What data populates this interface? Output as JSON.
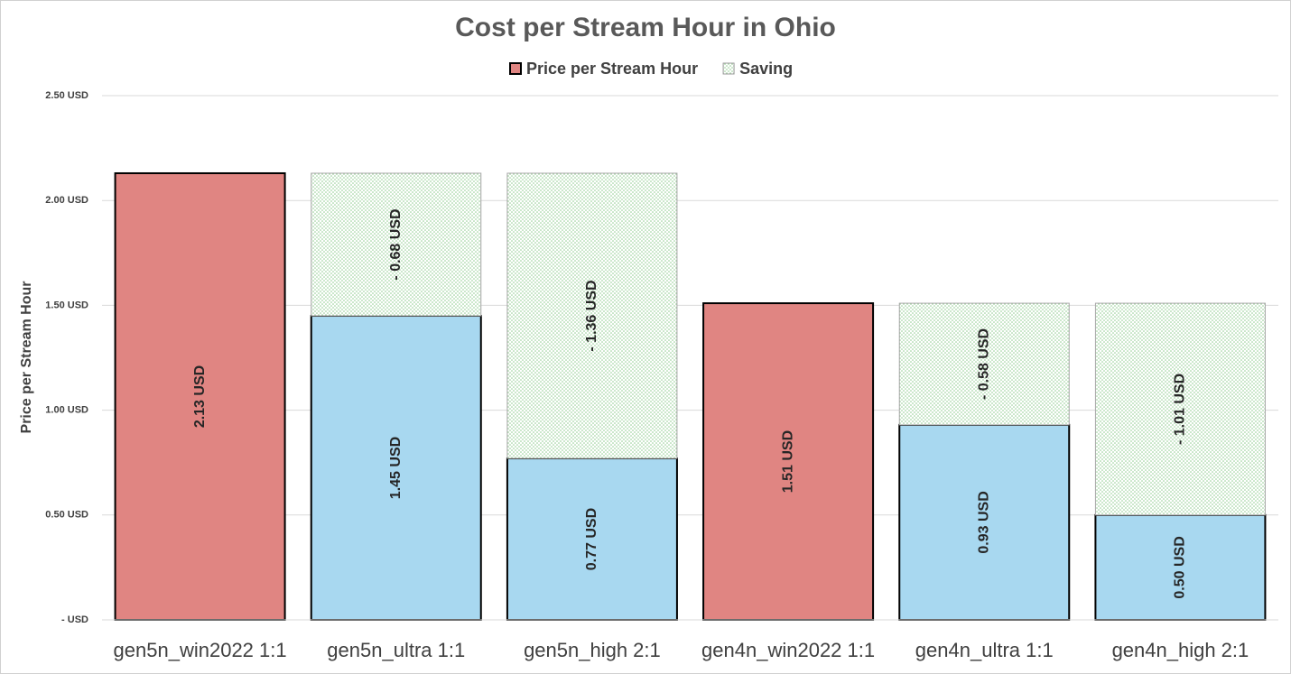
{
  "chart_data": {
    "type": "stacked_bar",
    "title": "Cost per Stream Hour in Ohio",
    "y_label": "Price per Stream Hour",
    "categories": [
      "gen5n_win2022 1:1",
      "gen5n_ultra 1:1",
      "gen5n_high 2:1",
      "gen4n_win2022 1:1",
      "gen4n_ultra 1:1",
      "gen4n_high 2:1"
    ],
    "series": [
      {
        "name": "Price per Stream Hour",
        "color": "#e08582",
        "colors": [
          "#e08582",
          "#a8d8f0",
          "#a8d8f0",
          "#e08582",
          "#a8d8f0",
          "#a8d8f0"
        ],
        "values": [
          2.13,
          1.45,
          0.77,
          1.51,
          0.93,
          0.5
        ],
        "value_labels": [
          "2.13 USD",
          "1.45 USD",
          "0.77 USD",
          "1.51 USD",
          "0.93 USD",
          "0.50 USD"
        ]
      },
      {
        "name": "Saving",
        "color": "#8fcc8f",
        "pattern": "dots",
        "values": [
          null,
          0.68,
          1.36,
          null,
          0.58,
          1.01
        ],
        "value_labels": [
          null,
          "- 0.68 USD",
          "- 1.36 USD",
          null,
          "- 0.58 USD",
          "- 1.01 USD"
        ]
      }
    ],
    "ylim": [
      0,
      2.5
    ],
    "yticks": [
      {
        "value": 0,
        "label": "-   USD"
      },
      {
        "value": 0.5,
        "label": "0.50 USD"
      },
      {
        "value": 1,
        "label": "1.00 USD"
      },
      {
        "value": 1.5,
        "label": "1.50 USD"
      },
      {
        "value": 2,
        "label": "2.00 USD"
      },
      {
        "value": 2.5,
        "label": "2.50 USD"
      }
    ],
    "grid": true,
    "legend": "top"
  }
}
